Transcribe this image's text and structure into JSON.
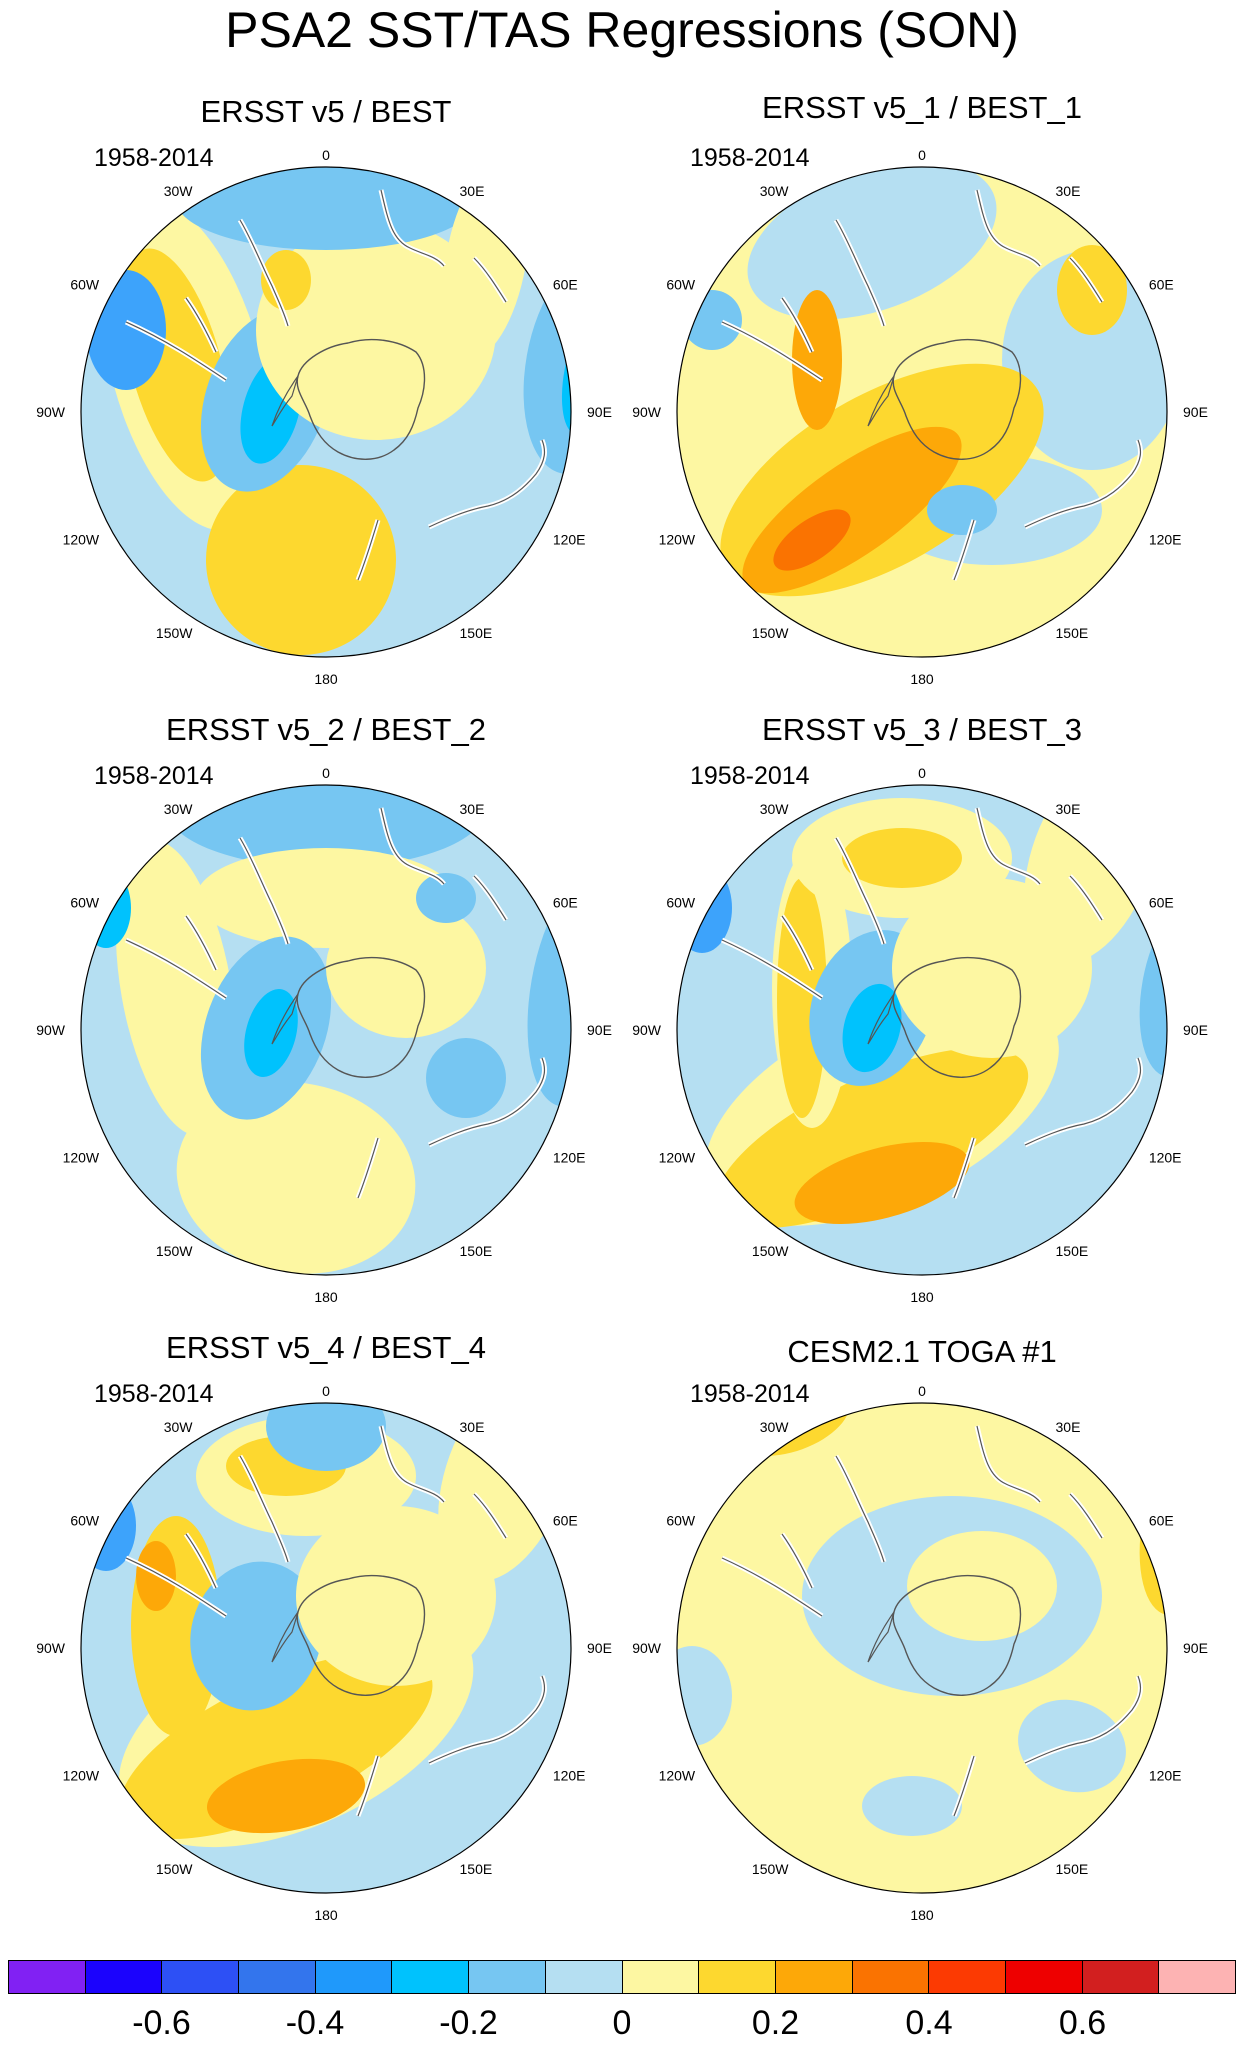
{
  "title": "PSA2 SST/TAS Regressions (SON)",
  "panels": [
    {
      "title": "ERSST v5 / BEST",
      "period": "1958-2014",
      "base": "#b5dff2",
      "blobs": [
        [
          "#fdf7a2",
          160,
          275,
          75,
          170,
          -15
        ],
        [
          "#fdd82f",
          150,
          275,
          45,
          120,
          -15
        ],
        [
          "#fdd82f",
          275,
          470,
          95,
          95,
          20
        ],
        [
          "#76c6f2",
          240,
          310,
          60,
          95,
          20
        ],
        [
          "#00c2fd",
          245,
          320,
          28,
          55,
          15
        ],
        [
          "#76c6f2",
          555,
          275,
          55,
          110,
          10
        ],
        [
          "#00c2fd",
          560,
          285,
          22,
          60,
          10
        ],
        [
          "#fdf7a2",
          350,
          240,
          120,
          110,
          0
        ],
        [
          "#76c6f2",
          300,
          110,
          150,
          50,
          0
        ],
        [
          "#fdf7a2",
          460,
          170,
          40,
          100,
          10
        ],
        [
          "#fdd82f",
          260,
          190,
          25,
          30,
          0
        ],
        [
          "#3da3fb",
          100,
          240,
          40,
          60,
          0
        ]
      ]
    },
    {
      "title": "ERSST v5_1 / BEST_1",
      "period": "1958-2014",
      "base": "#fdf7a2",
      "blobs": [
        [
          "#b5dff2",
          470,
          270,
          90,
          110,
          0
        ],
        [
          "#b5dff2",
          250,
          150,
          130,
          70,
          -20
        ],
        [
          "#b5dff2",
          370,
          420,
          110,
          55,
          0
        ],
        [
          "#fdd82f",
          260,
          390,
          180,
          85,
          -30
        ],
        [
          "#fda808",
          230,
          420,
          130,
          45,
          -35
        ],
        [
          "#fa7301",
          190,
          450,
          45,
          20,
          -35
        ],
        [
          "#fdd82f",
          470,
          200,
          35,
          45,
          0
        ],
        [
          "#fda808",
          195,
          270,
          25,
          70,
          0
        ],
        [
          "#76c6f2",
          90,
          230,
          30,
          30,
          0
        ],
        [
          "#76c6f2",
          340,
          420,
          35,
          25,
          0
        ]
      ]
    },
    {
      "title": "ERSST v5_2 / BEST_2",
      "period": "1958-2014",
      "base": "#b5dff2",
      "blobs": [
        [
          "#76c6f2",
          300,
          100,
          160,
          60,
          0
        ],
        [
          "#fdf7a2",
          300,
          190,
          130,
          50,
          0
        ],
        [
          "#fdf7a2",
          150,
          280,
          55,
          150,
          -10
        ],
        [
          "#fdf7a2",
          270,
          470,
          120,
          95,
          10
        ],
        [
          "#76c6f2",
          240,
          320,
          60,
          95,
          20
        ],
        [
          "#00c2fd",
          245,
          325,
          25,
          45,
          15
        ],
        [
          "#76c6f2",
          555,
          280,
          50,
          120,
          10
        ],
        [
          "#76c6f2",
          440,
          370,
          40,
          40,
          0
        ],
        [
          "#fdf7a2",
          380,
          260,
          80,
          70,
          0
        ],
        [
          "#76c6f2",
          420,
          190,
          30,
          25,
          0
        ],
        [
          "#00c2fd",
          80,
          200,
          25,
          40,
          0
        ]
      ]
    },
    {
      "title": "ERSST v5_3 / BEST_3",
      "period": "1958-2014",
      "base": "#b5dff2",
      "blobs": [
        [
          "#fdf7a2",
          260,
          400,
          190,
          95,
          -25
        ],
        [
          "#fdd82f",
          250,
          430,
          170,
          60,
          -25
        ],
        [
          "#fda808",
          260,
          475,
          90,
          35,
          -15
        ],
        [
          "#fdf7a2",
          190,
          280,
          40,
          140,
          0
        ],
        [
          "#fdd82f",
          180,
          290,
          25,
          120,
          0
        ],
        [
          "#fdf7a2",
          280,
          150,
          110,
          60,
          0
        ],
        [
          "#fdd82f",
          280,
          150,
          60,
          30,
          0
        ],
        [
          "#76c6f2",
          250,
          300,
          60,
          80,
          20
        ],
        [
          "#00c2fd",
          250,
          320,
          28,
          45,
          15
        ],
        [
          "#fdf7a2",
          470,
          150,
          60,
          110,
          20
        ],
        [
          "#76c6f2",
          560,
          280,
          40,
          90,
          10
        ],
        [
          "#fdf7a2",
          370,
          260,
          100,
          90,
          0
        ],
        [
          "#3da3fb",
          80,
          200,
          30,
          45,
          0
        ]
      ]
    },
    {
      "title": "ERSST v5_4 / BEST_4",
      "period": "1958-2014",
      "base": "#b5dff2",
      "blobs": [
        [
          "#fdf7a2",
          270,
          400,
          190,
          100,
          -25
        ],
        [
          "#fdd82f",
          250,
          420,
          170,
          65,
          -25
        ],
        [
          "#fda808",
          260,
          470,
          80,
          35,
          -10
        ],
        [
          "#fdd82f",
          150,
          300,
          45,
          110,
          0
        ],
        [
          "#fda808",
          130,
          250,
          20,
          35,
          0
        ],
        [
          "#fdf7a2",
          280,
          150,
          110,
          60,
          0
        ],
        [
          "#fdd82f",
          260,
          140,
          60,
          30,
          0
        ],
        [
          "#76c6f2",
          230,
          310,
          65,
          75,
          15
        ],
        [
          "#76c6f2",
          300,
          100,
          60,
          45,
          0
        ],
        [
          "#fdf7a2",
          480,
          150,
          60,
          110,
          20
        ],
        [
          "#fdf7a2",
          370,
          270,
          100,
          90,
          0
        ],
        [
          "#3da3fb",
          80,
          200,
          30,
          45,
          0
        ]
      ]
    },
    {
      "title": "CESM2.1 TOGA #1",
      "period": "1958-2014",
      "base": "#fdf7a2",
      "blobs": [
        [
          "#fdd82f",
          170,
          95,
          60,
          30,
          -20
        ],
        [
          "#fda808",
          180,
          90,
          30,
          15,
          -20
        ],
        [
          "#fdd82f",
          560,
          200,
          40,
          90,
          10
        ],
        [
          "#b5dff2",
          330,
          270,
          150,
          100,
          0
        ],
        [
          "#fdf7a2",
          360,
          260,
          75,
          55,
          0
        ],
        [
          "#b5dff2",
          450,
          420,
          55,
          45,
          20
        ],
        [
          "#b5dff2",
          70,
          370,
          40,
          50,
          0
        ],
        [
          "#b5dff2",
          290,
          480,
          50,
          30,
          0
        ]
      ]
    }
  ],
  "lon_labels": [
    "0",
    "30E",
    "60E",
    "90E",
    "120E",
    "150E",
    "180",
    "150W",
    "120W",
    "90W",
    "60W",
    "30W"
  ],
  "colorbar": {
    "colors": [
      "#8121f3",
      "#1b03fd",
      "#2d50f5",
      "#3375ed",
      "#1f99fb",
      "#00c2fd",
      "#76c6f2",
      "#b5dff2",
      "#fdf7a2",
      "#fdd82f",
      "#fda808",
      "#fa7301",
      "#fc3a02",
      "#ee0000",
      "#d21f1f",
      "#fdb3b3"
    ],
    "labels": [
      "-0.6",
      "-0.4",
      "-0.2",
      "0",
      "0.2",
      "0.4",
      "0.6"
    ]
  }
}
